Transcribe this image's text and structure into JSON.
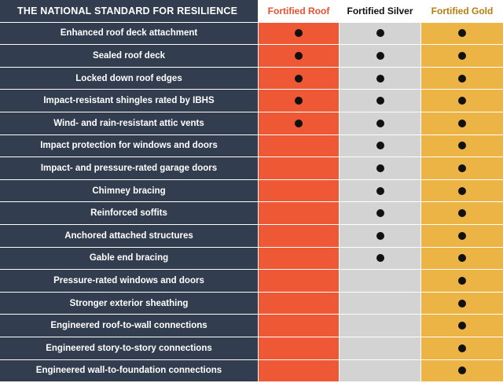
{
  "header": {
    "title": "THE NATIONAL STANDARD FOR RESILIENCE",
    "columns": [
      "Fortified Roof",
      "Fortified Silver",
      "Fortified Gold"
    ]
  },
  "colors": {
    "navy": "#323e4f",
    "roof": "#ef5835",
    "silver": "#d3d3d3",
    "gold": "#ebb445"
  },
  "rows": [
    {
      "label": "Enhanced roof deck attachment",
      "roof": true,
      "silver": true,
      "gold": true
    },
    {
      "label": "Sealed roof deck",
      "roof": true,
      "silver": true,
      "gold": true
    },
    {
      "label": "Locked down roof edges",
      "roof": true,
      "silver": true,
      "gold": true
    },
    {
      "label": "Impact-resistant shingles rated by IBHS",
      "roof": true,
      "silver": true,
      "gold": true
    },
    {
      "label": "Wind- and rain-resistant attic vents",
      "roof": true,
      "silver": true,
      "gold": true
    },
    {
      "label": "Impact protection for windows and doors",
      "roof": false,
      "silver": true,
      "gold": true
    },
    {
      "label": "Impact- and pressure-rated garage doors",
      "roof": false,
      "silver": true,
      "gold": true
    },
    {
      "label": "Chimney bracing",
      "roof": false,
      "silver": true,
      "gold": true
    },
    {
      "label": "Reinforced soffits",
      "roof": false,
      "silver": true,
      "gold": true
    },
    {
      "label": "Anchored attached structures",
      "roof": false,
      "silver": true,
      "gold": true
    },
    {
      "label": "Gable end bracing",
      "roof": false,
      "silver": true,
      "gold": true
    },
    {
      "label": "Pressure-rated windows and doors",
      "roof": false,
      "silver": false,
      "gold": true
    },
    {
      "label": "Stronger exterior sheathing",
      "roof": false,
      "silver": false,
      "gold": true
    },
    {
      "label": "Engineered roof-to-wall connections",
      "roof": false,
      "silver": false,
      "gold": true
    },
    {
      "label": "Engineered story-to-story connections",
      "roof": false,
      "silver": false,
      "gold": true
    },
    {
      "label": "Engineered wall-to-foundation connections",
      "roof": false,
      "silver": false,
      "gold": true
    }
  ]
}
